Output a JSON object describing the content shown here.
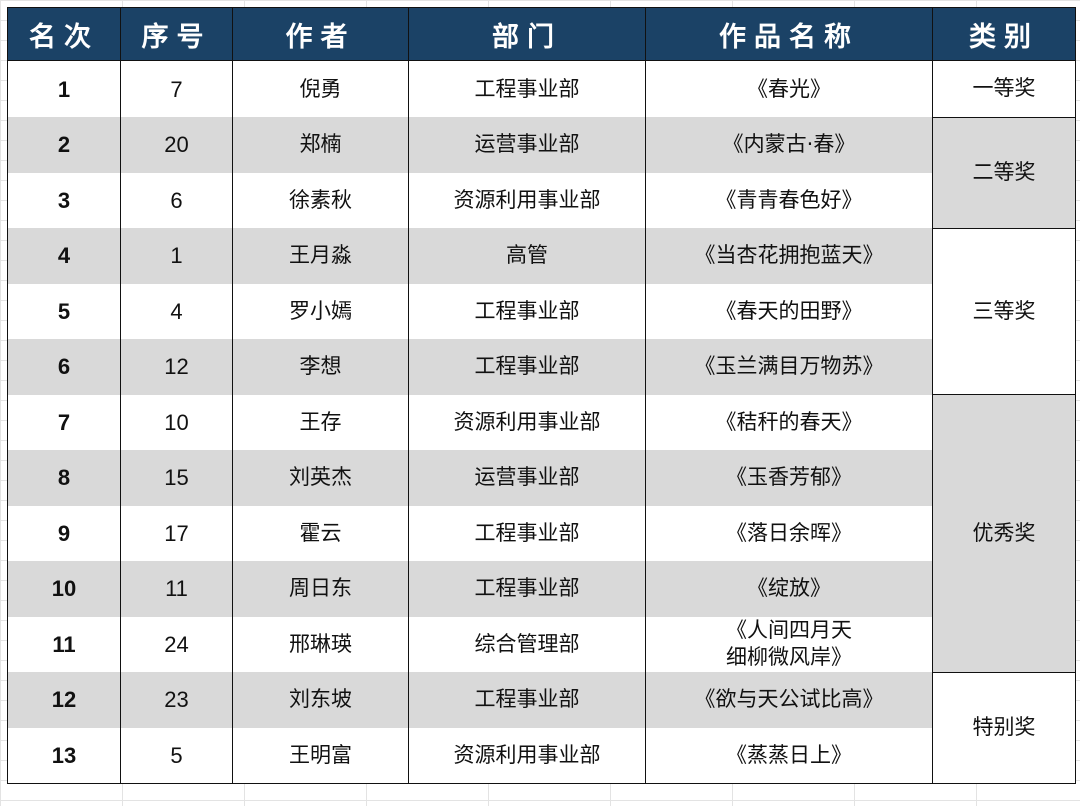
{
  "headers": [
    "名次",
    "序号",
    "作者",
    "部门",
    "作品名称",
    "类别"
  ],
  "rows": [
    {
      "rank": "1",
      "no": "7",
      "author": "倪勇",
      "dept": "工程事业部",
      "work": "《春光》"
    },
    {
      "rank": "2",
      "no": "20",
      "author": "郑楠",
      "dept": "运营事业部",
      "work": "《内蒙古·春》"
    },
    {
      "rank": "3",
      "no": "6",
      "author": "徐素秋",
      "dept": "资源利用事业部",
      "work": "《青青春色好》"
    },
    {
      "rank": "4",
      "no": "1",
      "author": "王月淼",
      "dept": "高管",
      "work": "《当杏花拥抱蓝天》"
    },
    {
      "rank": "5",
      "no": "4",
      "author": "罗小嫣",
      "dept": "工程事业部",
      "work": "《春天的田野》"
    },
    {
      "rank": "6",
      "no": "12",
      "author": "李想",
      "dept": "工程事业部",
      "work": "《玉兰满目万物苏》"
    },
    {
      "rank": "7",
      "no": "10",
      "author": "王存",
      "dept": "资源利用事业部",
      "work": "《秸秆的春天》"
    },
    {
      "rank": "8",
      "no": "15",
      "author": "刘英杰",
      "dept": "运营事业部",
      "work": "《玉香芳郁》"
    },
    {
      "rank": "9",
      "no": "17",
      "author": "霍云",
      "dept": "工程事业部",
      "work": "《落日余晖》"
    },
    {
      "rank": "10",
      "no": "11",
      "author": "周日东",
      "dept": "工程事业部",
      "work": "《绽放》"
    },
    {
      "rank": "11",
      "no": "24",
      "author": "邢琳瑛",
      "dept": "综合管理部",
      "work": "《人间四月天\n细柳微风岸》"
    },
    {
      "rank": "12",
      "no": "23",
      "author": "刘东坡",
      "dept": "工程事业部",
      "work": "《欲与天公试比高》"
    },
    {
      "rank": "13",
      "no": "5",
      "author": "王明富",
      "dept": "资源利用事业部",
      "work": "《蒸蒸日上》"
    }
  ],
  "categories": [
    {
      "label": "一等奖",
      "span": 1,
      "shade": "white"
    },
    {
      "label": "二等奖",
      "span": 2,
      "shade": "gray"
    },
    {
      "label": "三等奖",
      "span": 3,
      "shade": "white"
    },
    {
      "label": "优秀奖",
      "span": 5,
      "shade": "gray"
    },
    {
      "label": "特别奖",
      "span": 2,
      "shade": "white"
    }
  ],
  "colors": {
    "header": "#1b4266",
    "stripe": "#d9d9d9"
  }
}
